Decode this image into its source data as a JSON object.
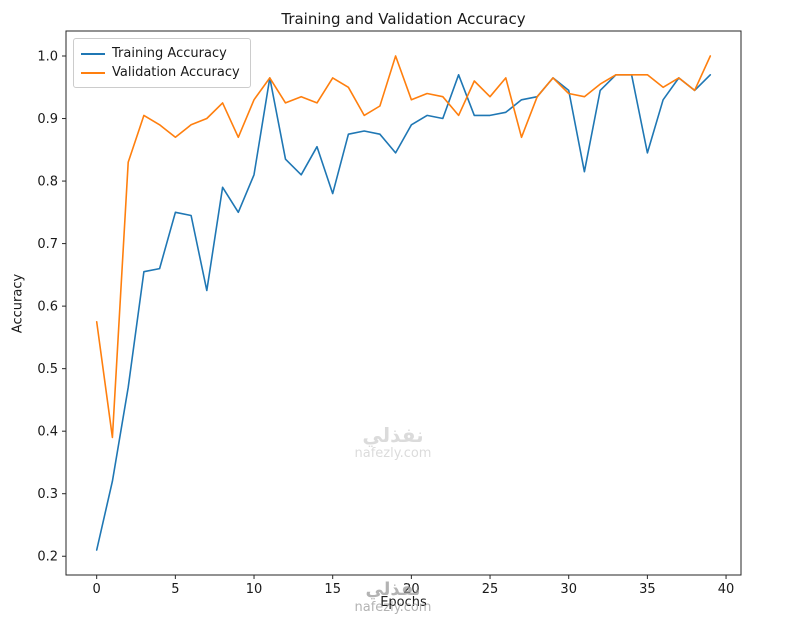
{
  "chart_data": {
    "type": "line",
    "title": "Training and Validation Accuracy",
    "xlabel": "Epochs",
    "ylabel": "Accuracy",
    "x": [
      0,
      1,
      2,
      3,
      4,
      5,
      6,
      7,
      8,
      9,
      10,
      11,
      12,
      13,
      14,
      15,
      16,
      17,
      18,
      19,
      20,
      21,
      22,
      23,
      24,
      25,
      26,
      27,
      28,
      29,
      30,
      31,
      32,
      33,
      34,
      35,
      36,
      37,
      38,
      39
    ],
    "series": [
      {
        "name": "Training Accuracy",
        "color": "#1f77b4",
        "values": [
          0.21,
          0.32,
          0.47,
          0.655,
          0.66,
          0.75,
          0.745,
          0.625,
          0.79,
          0.75,
          0.81,
          0.965,
          0.835,
          0.81,
          0.855,
          0.78,
          0.875,
          0.88,
          0.875,
          0.845,
          0.89,
          0.905,
          0.9,
          0.97,
          0.905,
          0.905,
          0.91,
          0.93,
          0.935,
          0.965,
          0.945,
          0.815,
          0.945,
          0.97,
          0.97,
          0.845,
          0.93,
          0.965,
          0.945,
          0.97
        ]
      },
      {
        "name": "Validation Accuracy",
        "color": "#ff7f0e",
        "values": [
          0.575,
          0.39,
          0.83,
          0.905,
          0.89,
          0.87,
          0.89,
          0.9,
          0.925,
          0.87,
          0.93,
          0.965,
          0.925,
          0.935,
          0.925,
          0.965,
          0.95,
          0.905,
          0.92,
          1.0,
          0.93,
          0.94,
          0.935,
          0.905,
          0.96,
          0.935,
          0.965,
          0.87,
          0.935,
          0.965,
          0.94,
          0.935,
          0.955,
          0.97,
          0.97,
          0.97,
          0.95,
          0.965,
          0.945,
          1.0
        ]
      }
    ],
    "xlim": [
      -1.95,
      40.95
    ],
    "ylim": [
      0.17,
      1.04
    ],
    "xticks": [
      0,
      5,
      10,
      15,
      20,
      25,
      30,
      35,
      40
    ],
    "yticks": [
      0.2,
      0.3,
      0.4,
      0.5,
      0.6,
      0.7,
      0.8,
      0.9,
      1.0
    ],
    "grid": false,
    "legend_position": "upper left"
  },
  "watermark": {
    "arabic": "نفذلي",
    "domain": "nafezly.com"
  }
}
